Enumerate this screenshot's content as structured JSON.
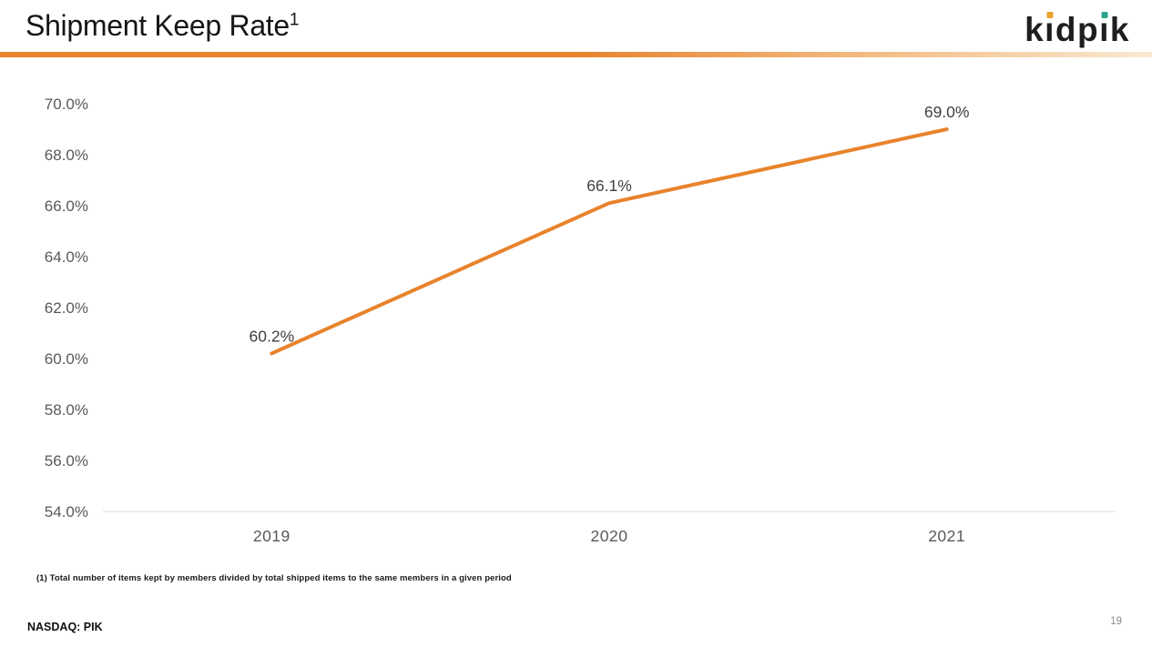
{
  "slide": {
    "title": "Shipment Keep Rate",
    "title_superscript": "1",
    "footnote": "(1) Total number of items kept by members divided by total shipped items to the same members in a given period",
    "ticker": "NASDAQ: PIK",
    "page_number": "19"
  },
  "logo": {
    "text": "kidpik",
    "k1": "k",
    "i1": "ı",
    "d": "d",
    "p": "p",
    "i2": "ı",
    "k2": "k",
    "dot1_color": "#EDA22D",
    "dot2_color": "#2BA48C",
    "text_color": "#1E1E1E"
  },
  "colors": {
    "accent_orange": "#E8832C",
    "rule_gradient_end": "#FAE9D2",
    "axis_line": "#D9D9D9",
    "tick_label": "#595959",
    "data_label": "#404040",
    "title_text": "#161616",
    "page_number": "#8B8B8B"
  },
  "chart_data": {
    "type": "line",
    "title": "Shipment Keep Rate",
    "categories": [
      "2019",
      "2020",
      "2021"
    ],
    "series": [
      {
        "name": "Shipment Keep Rate",
        "values": [
          60.2,
          66.1,
          69.0
        ]
      }
    ],
    "data_labels": [
      "60.2%",
      "66.1%",
      "69.0%"
    ],
    "y_ticks": [
      "70.0%",
      "68.0%",
      "66.0%",
      "64.0%",
      "62.0%",
      "60.0%",
      "58.0%",
      "56.0%",
      "54.0%"
    ],
    "ylim": [
      54.0,
      70.0
    ],
    "y_tick_step": 2.0,
    "xlabel": "",
    "ylabel": "",
    "line_color": "#E8832C",
    "line_width": 4,
    "grid": false,
    "legend": false
  }
}
